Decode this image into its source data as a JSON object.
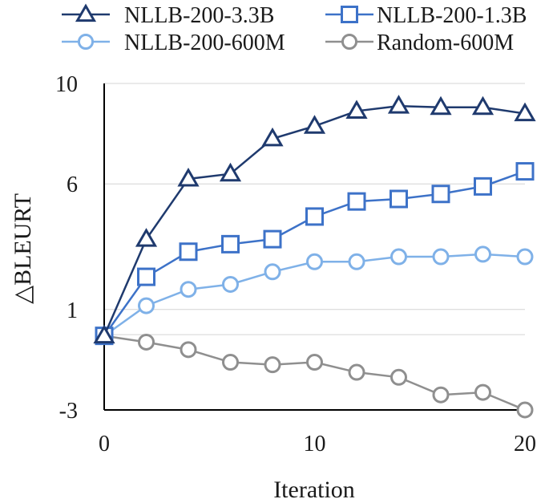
{
  "chart_data": {
    "type": "line",
    "title": "",
    "xlabel": "Iteration",
    "ylabel": "△BLEURT",
    "x": [
      0,
      2,
      4,
      6,
      8,
      10,
      12,
      14,
      16,
      18,
      20
    ],
    "xlim": [
      0,
      20
    ],
    "ylim": [
      -3,
      10
    ],
    "xticks": [
      0,
      10,
      20
    ],
    "xtick_labels": [
      "0",
      "10",
      "20"
    ],
    "yticks": [
      -3,
      1,
      6,
      10
    ],
    "ytick_labels": [
      "-3",
      "1",
      "6",
      "10"
    ],
    "grid_y": [
      -3,
      0,
      1,
      6,
      10
    ],
    "legend_position": "top",
    "series": [
      {
        "name": "NLLB-200-3.3B",
        "marker": "triangle",
        "color": "#1f3a6e",
        "values": [
          -0.05,
          3.8,
          6.2,
          6.4,
          7.8,
          8.3,
          8.9,
          9.1,
          9.05,
          9.05,
          8.8
        ]
      },
      {
        "name": "NLLB-200-1.3B",
        "marker": "square",
        "color": "#3d72c8",
        "values": [
          -0.05,
          2.3,
          3.3,
          3.6,
          3.8,
          4.7,
          5.3,
          5.4,
          5.6,
          5.9,
          6.5
        ]
      },
      {
        "name": "NLLB-200-600M",
        "marker": "circle",
        "color": "#7fb1e8",
        "values": [
          -0.05,
          1.15,
          1.8,
          2.0,
          2.5,
          2.9,
          2.9,
          3.1,
          3.1,
          3.2,
          3.1
        ]
      },
      {
        "name": "Random-600M",
        "marker": "circle",
        "color": "#8f8f8f",
        "values": [
          -0.05,
          -0.3,
          -0.6,
          -1.1,
          -1.2,
          -1.1,
          -1.5,
          -1.7,
          -2.4,
          -2.3,
          -3.0
        ]
      }
    ]
  }
}
